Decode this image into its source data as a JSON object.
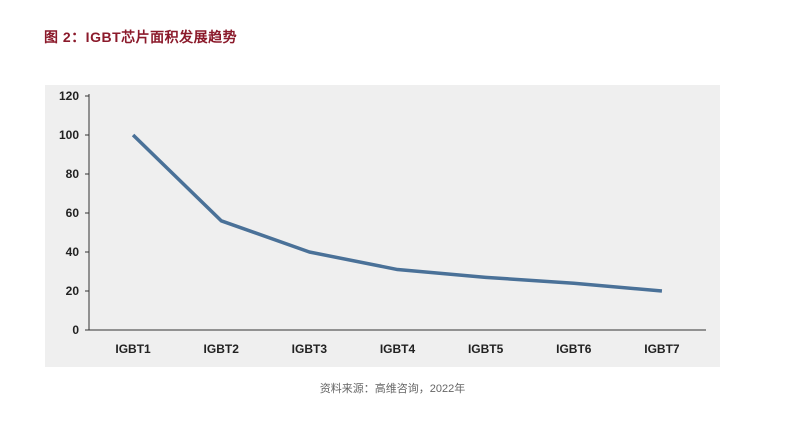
{
  "title": "图 2：IGBT芯片面积发展趋势",
  "source": "资料来源：高维咨询，2022年",
  "chart_data": {
    "type": "line",
    "title": "图 2：IGBT芯片面积发展趋势",
    "xlabel": "",
    "ylabel": "",
    "categories": [
      "IGBT1",
      "IGBT2",
      "IGBT3",
      "IGBT4",
      "IGBT5",
      "IGBT6",
      "IGBT7"
    ],
    "series": [
      {
        "values": [
          100,
          56,
          40,
          31,
          27,
          24,
          20
        ],
        "color": "#4a7198"
      }
    ],
    "ylim": [
      0,
      120
    ],
    "yticks": [
      0,
      20,
      40,
      60,
      80,
      100,
      120
    ],
    "grid": false,
    "legend": "none",
    "background": "#efefef"
  }
}
